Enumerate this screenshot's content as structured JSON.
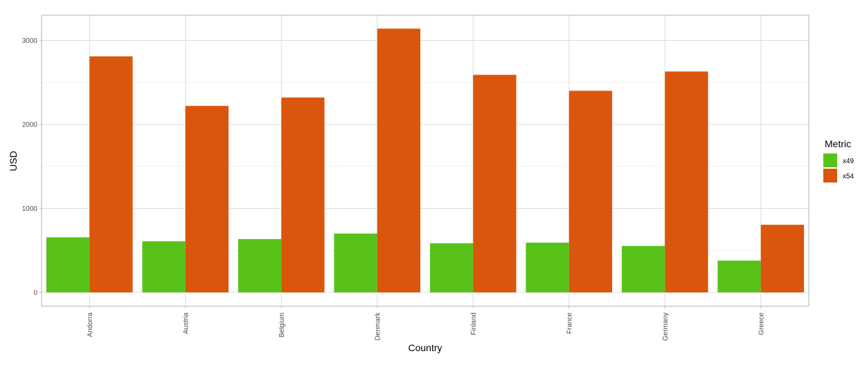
{
  "chart_data": {
    "type": "bar",
    "categories": [
      "Andorra",
      "Austria",
      "Belgium",
      "Denmark",
      "Finland",
      "France",
      "Germany",
      "Greece"
    ],
    "series": [
      {
        "name": "x49",
        "values": [
          655,
          608,
          635,
          700,
          585,
          592,
          553,
          378
        ]
      },
      {
        "name": "x54",
        "values": [
          2810,
          2220,
          2320,
          3140,
          2590,
          2400,
          2630,
          805
        ]
      }
    ],
    "colors": [
      "#58c219",
      "#da560c"
    ],
    "title": "",
    "xlabel": "Country",
    "ylabel": "USD",
    "ylim": [
      -165,
      3300
    ],
    "yticks": [
      0,
      1000,
      2000,
      3000
    ],
    "legend": {
      "title": "Metric",
      "position": "right"
    },
    "grid": true
  }
}
